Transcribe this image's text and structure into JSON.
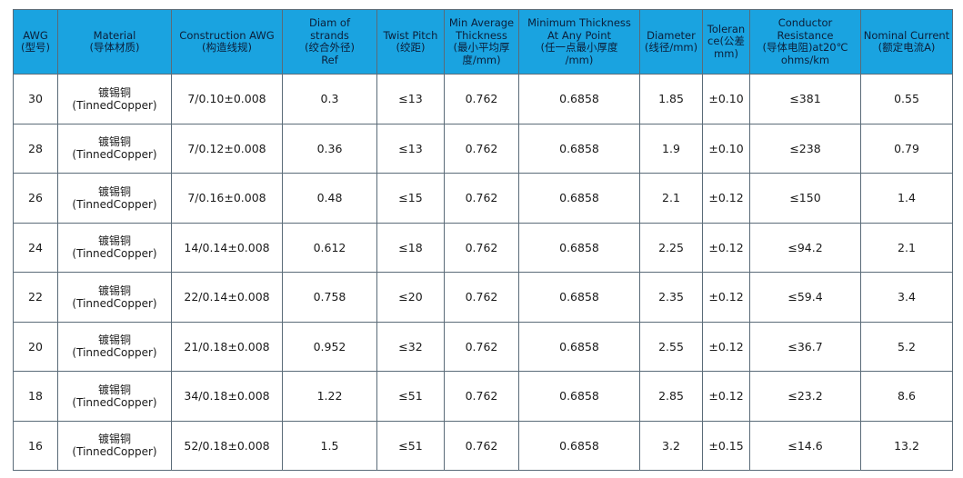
{
  "table": {
    "headers": [
      [
        "AWG",
        "(型号)"
      ],
      [
        "Material",
        "(导体材质)"
      ],
      [
        "Construction AWG",
        "(构造线规)"
      ],
      [
        "Diam of",
        "strands",
        "(绞合外径)",
        "Ref"
      ],
      [
        "Twist Pitch",
        "(绞距)"
      ],
      [
        "Min Average",
        "Thickness",
        "(最小平均厚",
        "度/mm)"
      ],
      [
        "Minimum Thickness",
        "At Any Point",
        "(任一点最小厚度",
        "/mm)"
      ],
      [
        "Diameter",
        "(线径/mm)"
      ],
      [
        "Toleran",
        "ce(公差",
        "mm)"
      ],
      [
        "Conductor",
        "Resistance",
        "(导体电阻)at20℃",
        "ohms/km"
      ],
      [
        "Nominal Current",
        "(额定电流A)"
      ]
    ],
    "rows": [
      {
        "awg": "30",
        "material": [
          "镀锡铜",
          "(TinnedCopper)"
        ],
        "construction": "7/0.10±0.008",
        "diam_strands": "0.3",
        "twist_pitch": "≤13",
        "min_avg_thickness": "0.762",
        "min_thickness": "0.6858",
        "diameter": "1.85",
        "tolerance": "±0.10",
        "resistance": "≤381",
        "current": "0.55"
      },
      {
        "awg": "28",
        "material": [
          "镀锡铜",
          "(TinnedCopper)"
        ],
        "construction": "7/0.12±0.008",
        "diam_strands": "0.36",
        "twist_pitch": "≤13",
        "min_avg_thickness": "0.762",
        "min_thickness": "0.6858",
        "diameter": "1.9",
        "tolerance": "±0.10",
        "resistance": "≤238",
        "current": "0.79"
      },
      {
        "awg": "26",
        "material": [
          "镀锡铜",
          "(TinnedCopper)"
        ],
        "construction": "7/0.16±0.008",
        "diam_strands": "0.48",
        "twist_pitch": "≤15",
        "min_avg_thickness": "0.762",
        "min_thickness": "0.6858",
        "diameter": "2.1",
        "tolerance": "±0.12",
        "resistance": "≤150",
        "current": "1.4"
      },
      {
        "awg": "24",
        "material": [
          "镀锡铜",
          "(TinnedCopper)"
        ],
        "construction": "14/0.14±0.008",
        "diam_strands": "0.612",
        "twist_pitch": "≤18",
        "min_avg_thickness": "0.762",
        "min_thickness": "0.6858",
        "diameter": "2.25",
        "tolerance": "±0.12",
        "resistance": "≤94.2",
        "current": "2.1"
      },
      {
        "awg": "22",
        "material": [
          "镀锡铜",
          "(TinnedCopper)"
        ],
        "construction": "22/0.14±0.008",
        "diam_strands": "0.758",
        "twist_pitch": "≤20",
        "min_avg_thickness": "0.762",
        "min_thickness": "0.6858",
        "diameter": "2.35",
        "tolerance": "±0.12",
        "resistance": "≤59.4",
        "current": "3.4"
      },
      {
        "awg": "20",
        "material": [
          "镀锡铜",
          "(TinnedCopper)"
        ],
        "construction": "21/0.18±0.008",
        "diam_strands": "0.952",
        "twist_pitch": "≤32",
        "min_avg_thickness": "0.762",
        "min_thickness": "0.6858",
        "diameter": "2.55",
        "tolerance": "±0.12",
        "resistance": "≤36.7",
        "current": "5.2"
      },
      {
        "awg": "18",
        "material": [
          "镀锡铜",
          "(TinnedCopper)"
        ],
        "construction": "34/0.18±0.008",
        "diam_strands": "1.22",
        "twist_pitch": "≤51",
        "min_avg_thickness": "0.762",
        "min_thickness": "0.6858",
        "diameter": "2.85",
        "tolerance": "±0.12",
        "resistance": "≤23.2",
        "current": "8.6"
      },
      {
        "awg": "16",
        "material": [
          "镀锡铜",
          "(TinnedCopper)"
        ],
        "construction": "52/0.18±0.008",
        "diam_strands": "1.5",
        "twist_pitch": "≤51",
        "min_avg_thickness": "0.762",
        "min_thickness": "0.6858",
        "diameter": "3.2",
        "tolerance": "±0.15",
        "resistance": "≤14.6",
        "current": "13.2"
      }
    ],
    "colors": {
      "header_bg": "#1aa3e0",
      "header_text": "#0b1f3a",
      "border": "#5a6b78",
      "cell_text": "#1a1a1a"
    }
  }
}
